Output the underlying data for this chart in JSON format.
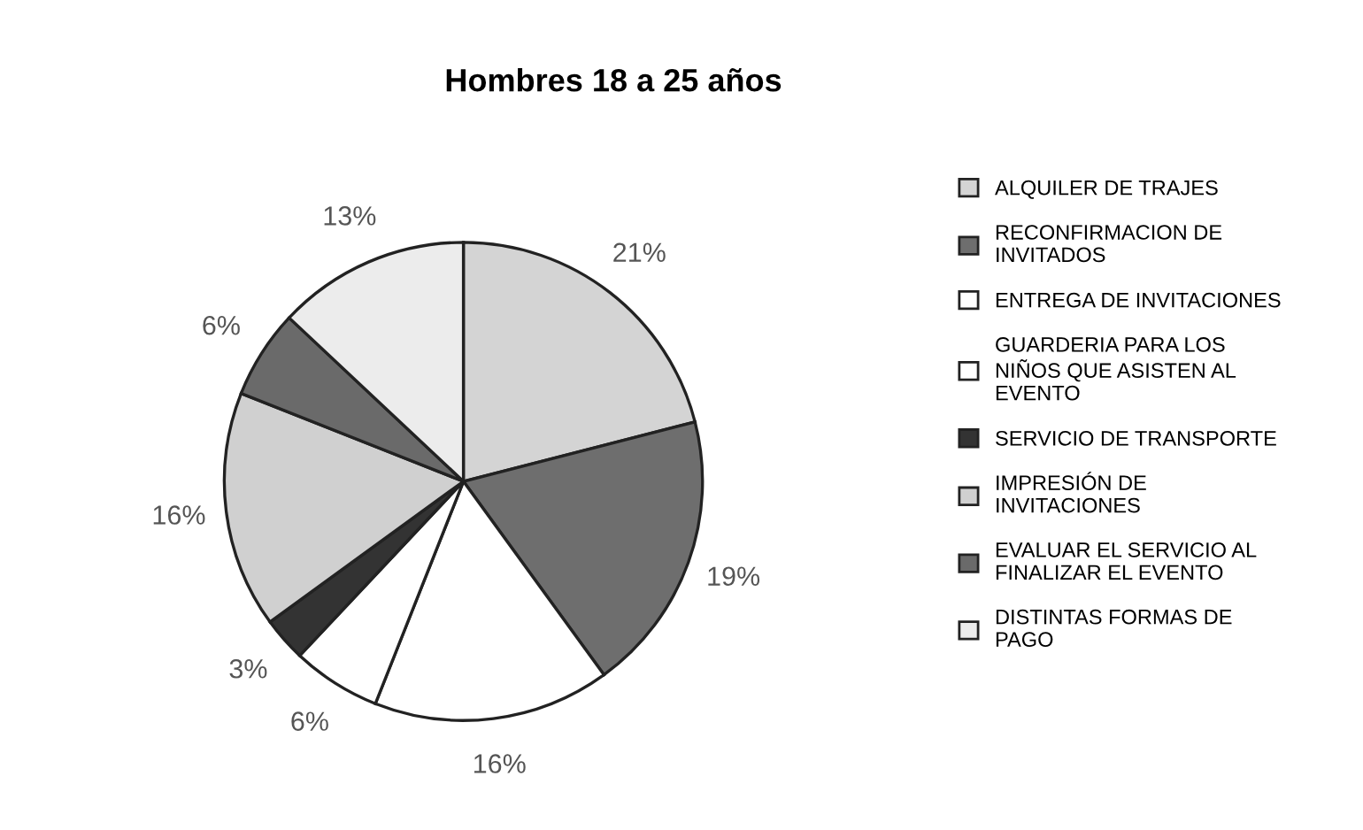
{
  "chart_data": {
    "type": "pie",
    "title": "Hombres 18 a 25 años",
    "categories": [
      "ALQUILER DE TRAJES",
      "RECONFIRMACION DE\nINVITADOS",
      "ENTREGA DE INVITACIONES",
      "GUARDERIA PARA LOS\nNIÑOS QUE ASISTEN AL\nEVENTO",
      "SERVICIO DE TRANSPORTE",
      "IMPRESIÓN DE\nINVITACIONES",
      "EVALUAR EL SERVICIO AL\nFINALIZAR EL EVENTO",
      "DISTINTAS FORMAS DE\nPAGO"
    ],
    "values": [
      21,
      19,
      16,
      6,
      3,
      16,
      6,
      13
    ],
    "value_labels": [
      "21%",
      "19%",
      "16%",
      "6%",
      "3%",
      "16%",
      "6%",
      "13%"
    ],
    "colors": [
      "#d4d4d4",
      "#6e6e6e",
      "#ffffff",
      "#ffffff",
      "#333333",
      "#d0d0d0",
      "#6a6a6a",
      "#ececec"
    ],
    "legend": "right"
  }
}
